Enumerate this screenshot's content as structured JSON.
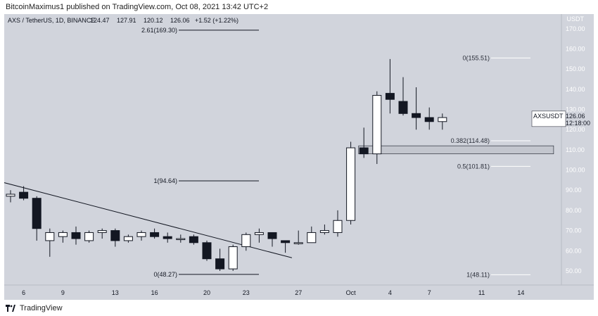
{
  "banner": {
    "text": "BitcoinMaximus1 published on TradingView.com, Oct 08, 2021 13:42 UTC+2"
  },
  "footer": {
    "brand": "TradingView"
  },
  "colors": {
    "background": "#d1d4dc",
    "bullish": "#ffffff",
    "bearish": "#131722",
    "line": "#131722",
    "fib": "#131722",
    "fib_light": "#ffffff",
    "zone": "#c3c6ce"
  },
  "chart_data": {
    "type": "candlestick",
    "symbol_line": "AXS / TetherUS, 1D, BINANCE",
    "ohlc_labels": [
      "124.47",
      "127.91",
      "120.12",
      "126.06",
      "+1.52 (+1.22%)"
    ],
    "currency": "USDT",
    "ylim": [
      43,
      171
    ],
    "y_ticks": [
      50,
      60,
      70,
      80,
      90,
      100,
      110,
      120,
      130,
      140,
      150,
      160,
      170
    ],
    "y_tick_labels": [
      "50.00",
      "60.00",
      "70.00",
      "80.00",
      "90.00",
      "100.00",
      "110.00",
      "120.00",
      "130.00",
      "140.00",
      "150.00",
      "160.00",
      "170.00"
    ],
    "x_ticks": [
      {
        "i": 1,
        "label": "6"
      },
      {
        "i": 4,
        "label": "9"
      },
      {
        "i": 8,
        "label": "13"
      },
      {
        "i": 11,
        "label": "16"
      },
      {
        "i": 15,
        "label": "20"
      },
      {
        "i": 18,
        "label": "23"
      },
      {
        "i": 22,
        "label": "27"
      },
      {
        "i": 26,
        "label": "Oct"
      },
      {
        "i": 29,
        "label": "4"
      },
      {
        "i": 32,
        "label": "7"
      },
      {
        "i": 36,
        "label": "11"
      },
      {
        "i": 39,
        "label": "14"
      }
    ],
    "candles": [
      [
        0,
        87,
        90,
        84,
        88
      ],
      [
        1,
        89,
        92,
        85,
        86
      ],
      [
        2,
        86,
        87,
        65,
        71
      ],
      [
        3,
        65,
        71,
        57,
        69
      ],
      [
        4,
        67,
        70,
        64,
        69
      ],
      [
        5,
        69,
        72,
        63,
        66
      ],
      [
        6,
        65,
        70,
        64,
        69
      ],
      [
        7,
        69,
        71,
        66,
        70
      ],
      [
        8,
        70,
        71,
        62,
        65
      ],
      [
        9,
        65,
        68,
        64,
        67
      ],
      [
        10,
        67,
        70,
        65,
        69
      ],
      [
        11,
        69,
        71,
        66,
        67
      ],
      [
        12,
        67,
        69,
        64,
        66
      ],
      [
        13,
        66,
        68,
        64,
        66
      ],
      [
        14,
        67,
        68,
        63,
        64
      ],
      [
        15,
        64,
        65,
        55,
        56
      ],
      [
        16,
        56,
        61,
        50,
        51
      ],
      [
        17,
        51,
        63,
        50,
        62
      ],
      [
        18,
        62,
        69,
        60,
        68
      ],
      [
        19,
        68,
        71,
        64,
        69
      ],
      [
        20,
        69,
        69,
        62,
        66
      ],
      [
        21,
        65,
        65,
        59,
        64
      ],
      [
        22,
        64,
        70,
        63,
        64
      ],
      [
        23,
        64,
        72,
        64,
        69
      ],
      [
        24,
        69,
        73,
        68,
        70
      ],
      [
        25,
        69,
        80,
        67,
        75
      ],
      [
        26,
        75,
        114,
        73,
        111
      ],
      [
        27,
        111,
        121,
        106,
        108
      ],
      [
        28,
        108,
        139,
        103,
        137
      ],
      [
        29,
        138,
        155,
        128,
        135
      ],
      [
        30,
        134,
        146,
        127,
        128
      ],
      [
        31,
        128,
        141,
        120,
        126
      ],
      [
        32,
        126,
        131,
        120,
        124
      ],
      [
        33,
        124,
        128,
        120,
        126
      ]
    ],
    "trendline": {
      "from": [
        -1,
        94.6
      ],
      "to": [
        21.5,
        56.5
      ]
    },
    "support_zone": {
      "from_i": 26.6,
      "to_i": 41.5,
      "low": 108,
      "high": 112
    },
    "fib_left": [
      {
        "label": "2.61(169.30)",
        "value": 169.3
      },
      {
        "label": "1(94.64)",
        "value": 94.64
      },
      {
        "label": "0(48.27)",
        "value": 48.27
      }
    ],
    "fib_right": [
      {
        "label": "0(155.51)",
        "value": 155.51
      },
      {
        "label": "0.382(114.48)",
        "value": 114.48
      },
      {
        "label": "0.5(101.81)",
        "value": 101.81
      },
      {
        "label": "1(48.11)",
        "value": 48.11
      }
    ],
    "price_tag": {
      "symbol": "AXSUSDT",
      "price": "126.06",
      "countdown": "12:18:00",
      "value": 126.06
    }
  }
}
